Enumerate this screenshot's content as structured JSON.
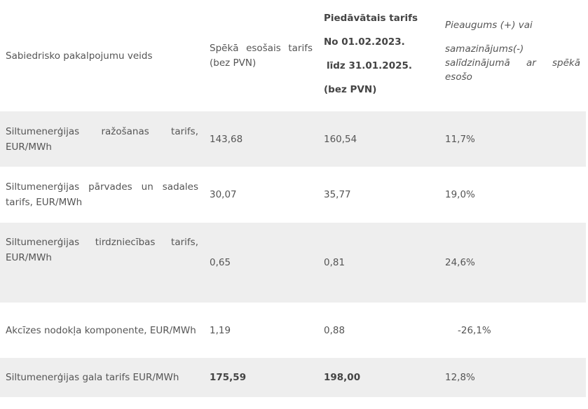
{
  "table": {
    "headers": {
      "col1": "Sabiedrisko pakalpojumu veids",
      "col2": "Spēkā esošais tarifs (bez PVN)",
      "col3": {
        "line1": "Piedāvātais tarifs",
        "line2": "No 01.02.2023.",
        "line3": "līdz 31.01.2025.",
        "line4": "(bez PVN)"
      },
      "col4": {
        "line1": "Pieaugums (+) vai",
        "line2": "samazinājums(-)",
        "line3": "salīdzinājumā ar spēkā",
        "line4": "esošo"
      }
    },
    "rows": [
      {
        "label": "Siltumenerģijas ražošanas tarifs, EUR/MWh",
        "current": "143,68",
        "proposed": "160,54",
        "change": "11,7%"
      },
      {
        "label": "Siltumenerģijas pārvades un sadales tarifs, EUR/MWh",
        "current": "30,07",
        "proposed": "35,77",
        "change": "19,0%"
      },
      {
        "label": "Siltumenerģijas tirdzniecības tarifs, EUR/MWh",
        "current": "0,65",
        "proposed": "0,81",
        "change": "24,6%"
      },
      {
        "label": "Akcīzes nodokļa komponente, EUR/MWh",
        "current": "1,19",
        "proposed": "0,88",
        "change": "-26,1%"
      },
      {
        "label": "Siltumenerģijas gala tarifs EUR/MWh",
        "current": "175,59",
        "proposed": "198,00",
        "change": "12,8%"
      }
    ]
  }
}
